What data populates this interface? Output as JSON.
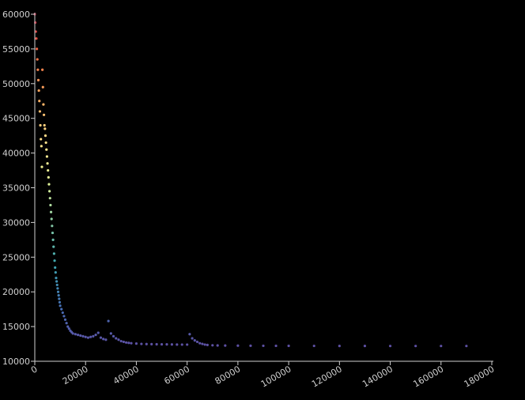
{
  "chart_data": {
    "type": "scatter",
    "title": "",
    "xlabel": "",
    "ylabel": "",
    "xlim": [
      0,
      180000
    ],
    "ylim": [
      10000,
      60000
    ],
    "x_ticks": [
      0,
      20000,
      40000,
      60000,
      80000,
      100000,
      120000,
      140000,
      160000,
      180000
    ],
    "y_ticks": [
      10000,
      15000,
      20000,
      25000,
      30000,
      35000,
      40000,
      45000,
      50000,
      55000,
      60000
    ],
    "grid": false,
    "colormap": "spectral",
    "color_encodes": "y",
    "axis_color": "#cfcfcf",
    "background": "#000000",
    "series": [
      {
        "points": [
          [
            0,
            60000
          ],
          [
            200,
            58800
          ],
          [
            400,
            57500
          ],
          [
            600,
            56500
          ],
          [
            800,
            55000
          ],
          [
            1000,
            53500
          ],
          [
            1200,
            52000
          ],
          [
            1400,
            50500
          ],
          [
            1600,
            49000
          ],
          [
            1800,
            47500
          ],
          [
            2000,
            46000
          ],
          [
            2200,
            44000
          ],
          [
            2400,
            42000
          ],
          [
            2600,
            41000
          ],
          [
            2800,
            38000
          ],
          [
            3000,
            52000
          ],
          [
            3200,
            49500
          ],
          [
            3400,
            47000
          ],
          [
            3600,
            45500
          ],
          [
            3800,
            44000
          ],
          [
            4000,
            43500
          ],
          [
            4200,
            42500
          ],
          [
            4400,
            41500
          ],
          [
            4600,
            40500
          ],
          [
            4800,
            39500
          ],
          [
            5000,
            38500
          ],
          [
            5200,
            37500
          ],
          [
            5400,
            36500
          ],
          [
            5600,
            35500
          ],
          [
            5800,
            34500
          ],
          [
            6000,
            33500
          ],
          [
            6200,
            32500
          ],
          [
            6400,
            31500
          ],
          [
            6600,
            30500
          ],
          [
            6800,
            29500
          ],
          [
            7000,
            28500
          ],
          [
            7200,
            27500
          ],
          [
            7400,
            26500
          ],
          [
            7600,
            25500
          ],
          [
            7800,
            24500
          ],
          [
            8000,
            23500
          ],
          [
            8200,
            22800
          ],
          [
            8400,
            22000
          ],
          [
            8600,
            21500
          ],
          [
            8800,
            21000
          ],
          [
            9000,
            20500
          ],
          [
            9200,
            20000
          ],
          [
            9400,
            19500
          ],
          [
            9600,
            19000
          ],
          [
            9800,
            18500
          ],
          [
            10000,
            18000
          ],
          [
            10500,
            17500
          ],
          [
            11000,
            17000
          ],
          [
            11500,
            16500
          ],
          [
            12000,
            16000
          ],
          [
            12500,
            15500
          ],
          [
            13000,
            15000
          ],
          [
            13500,
            14700
          ],
          [
            14000,
            14400
          ],
          [
            14500,
            14200
          ],
          [
            15000,
            14000
          ],
          [
            16000,
            13900
          ],
          [
            17000,
            13800
          ],
          [
            18000,
            13700
          ],
          [
            19000,
            13600
          ],
          [
            20000,
            13500
          ],
          [
            21000,
            13400
          ],
          [
            22000,
            13500
          ],
          [
            23000,
            13600
          ],
          [
            24000,
            13800
          ],
          [
            25000,
            14100
          ],
          [
            26000,
            13400
          ],
          [
            27000,
            13200
          ],
          [
            28000,
            13100
          ],
          [
            29000,
            15800
          ],
          [
            30000,
            14000
          ],
          [
            31000,
            13600
          ],
          [
            32000,
            13300
          ],
          [
            33000,
            13100
          ],
          [
            34000,
            12900
          ],
          [
            35000,
            12800
          ],
          [
            36000,
            12700
          ],
          [
            37000,
            12650
          ],
          [
            38000,
            12600
          ],
          [
            40000,
            12550
          ],
          [
            42000,
            12500
          ],
          [
            44000,
            12480
          ],
          [
            46000,
            12460
          ],
          [
            48000,
            12450
          ],
          [
            50000,
            12440
          ],
          [
            52000,
            12430
          ],
          [
            54000,
            12420
          ],
          [
            56000,
            12410
          ],
          [
            58000,
            12400
          ],
          [
            60000,
            12400
          ],
          [
            61000,
            13900
          ],
          [
            62000,
            13300
          ],
          [
            63000,
            13000
          ],
          [
            64000,
            12800
          ],
          [
            65000,
            12600
          ],
          [
            66000,
            12500
          ],
          [
            67000,
            12400
          ],
          [
            68000,
            12350
          ],
          [
            70000,
            12300
          ],
          [
            72000,
            12280
          ],
          [
            75000,
            12260
          ],
          [
            80000,
            12250
          ],
          [
            85000,
            12240
          ],
          [
            90000,
            12230
          ],
          [
            95000,
            12225
          ],
          [
            100000,
            12220
          ],
          [
            110000,
            12215
          ],
          [
            120000,
            12210
          ],
          [
            130000,
            12205
          ],
          [
            140000,
            12200
          ],
          [
            150000,
            12200
          ],
          [
            160000,
            12200
          ],
          [
            170000,
            12200
          ]
        ]
      }
    ]
  }
}
